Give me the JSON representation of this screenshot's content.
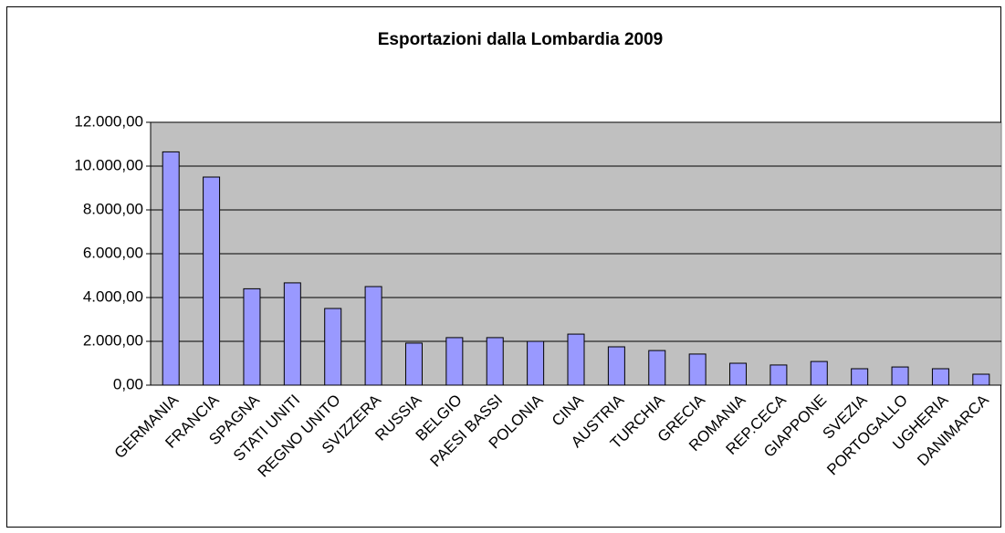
{
  "chart_data": {
    "type": "bar",
    "title": "Esportazioni dalla Lombardia 2009",
    "categories": [
      "GERMANIA",
      "FRANCIA",
      "SPAGNA",
      "STATI UNITI",
      "REGNO UNITO",
      "SVIZZERA",
      "RUSSIA",
      "BELGIO",
      "PAESI BASSI",
      "POLONIA",
      "CINA",
      "AUSTRIA",
      "TURCHIA",
      "GRECIA",
      "ROMANIA",
      "REP.CECA",
      "GIAPPONE",
      "SVEZIA",
      "PORTOGALLO",
      "UGHERIA",
      "DANIMARCA"
    ],
    "values": [
      10650,
      9500,
      4400,
      4670,
      3500,
      4500,
      1920,
      2170,
      2170,
      2000,
      2330,
      1750,
      1580,
      1420,
      1000,
      920,
      1080,
      750,
      830,
      750,
      500
    ],
    "color": "#9999ff",
    "ylim": [
      0,
      12000
    ],
    "yticks": [
      {
        "value": 0,
        "label": "0,00"
      },
      {
        "value": 2000,
        "label": "2.000,00"
      },
      {
        "value": 4000,
        "label": "4.000,00"
      },
      {
        "value": 6000,
        "label": "6.000,00"
      },
      {
        "value": 8000,
        "label": "8.000,00"
      },
      {
        "value": 10000,
        "label": "10.000,00"
      },
      {
        "value": 12000,
        "label": "12.000,00"
      }
    ],
    "grid": true
  }
}
